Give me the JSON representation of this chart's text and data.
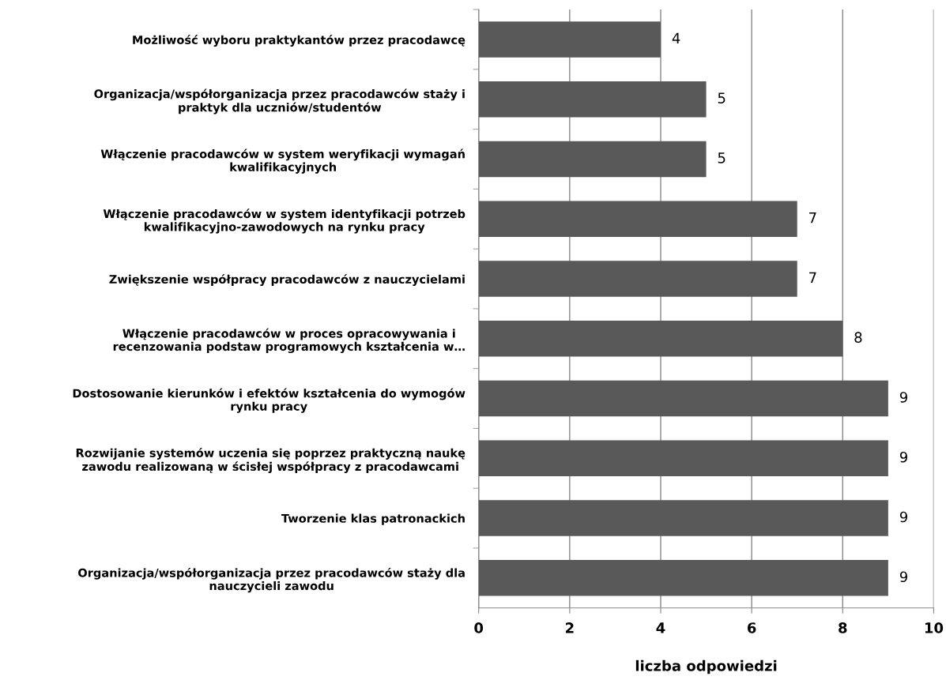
{
  "chart_data": {
    "type": "bar",
    "orientation": "horizontal",
    "xlabel": "liczba odpowiedzi",
    "categories": [
      "Możliwość wyboru praktykantów przez pracodawcę",
      "Organizacja/współorganizacja przez pracodawców staży i\npraktyk dla uczniów/studentów",
      "Włączenie pracodawców w system weryfikacji wymagań\nkwalifikacyjnych",
      "Włączenie pracodawców w system identyfikacji potrzeb\nkwalifikacyjno-zawodowych na rynku pracy",
      "Zwiększenie współpracy pracodawców z nauczycielami",
      "Włączenie pracodawców w proces opracowywania i\nrecenzowania podstaw programowych kształcenia w…",
      "Dostosowanie kierunków i efektów kształcenia do wymogów\nrynku pracy",
      "Rozwijanie systemów uczenia się poprzez praktyczną naukę\nzawodu realizowaną w ścisłej współpracy z pracodawcami",
      "Tworzenie klas patronackich",
      "Organizacja/współorganizacja przez pracodawców staży dla\nnauczycieli zawodu"
    ],
    "values": [
      4,
      5,
      5,
      7,
      7,
      8,
      9,
      9,
      9,
      9
    ],
    "color": "#595959",
    "xlim": [
      0,
      10
    ],
    "xticks": [
      0,
      2,
      4,
      6,
      8,
      10
    ],
    "grid": "x",
    "data_labels": true
  }
}
